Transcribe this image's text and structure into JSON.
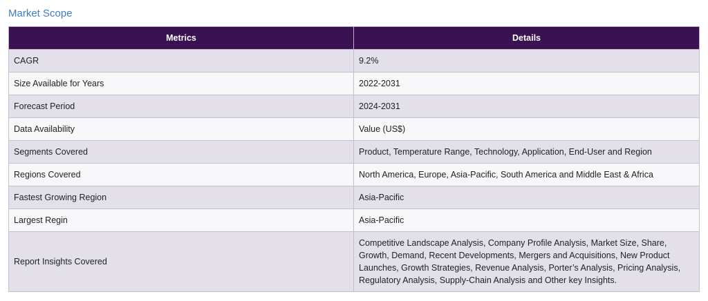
{
  "section_title": "Market Scope",
  "table": {
    "headers": [
      "Metrics",
      "Details"
    ],
    "rows": [
      {
        "metric": "CAGR",
        "detail": "9.2%"
      },
      {
        "metric": "Size Available for Years",
        "detail": "2022-2031"
      },
      {
        "metric": "Forecast Period",
        "detail": "2024-2031"
      },
      {
        "metric": "Data Availability",
        "detail": "Value (US$)"
      },
      {
        "metric": "Segments Covered",
        "detail": "Product, Temperature Range, Technology, Application, End-User and Region"
      },
      {
        "metric": "Regions Covered",
        "detail": "North America, Europe, Asia-Pacific, South America and Middle East & Africa"
      },
      {
        "metric": "Fastest Growing Region",
        "detail": "Asia-Pacific"
      },
      {
        "metric": "Largest Regin",
        "detail": "Asia-Pacific"
      },
      {
        "metric": "Report Insights Covered",
        "detail": "Competitive Landscape Analysis, Company Profile Analysis, Market Size, Share, Growth, Demand, Recent Developments, Mergers and Acquisitions, New Product Launches, Growth Strategies, Revenue Analysis, Porter’s Analysis, Pricing Analysis, Regulatory Analysis, Supply-Chain Analysis and Other key Insights."
      }
    ]
  }
}
